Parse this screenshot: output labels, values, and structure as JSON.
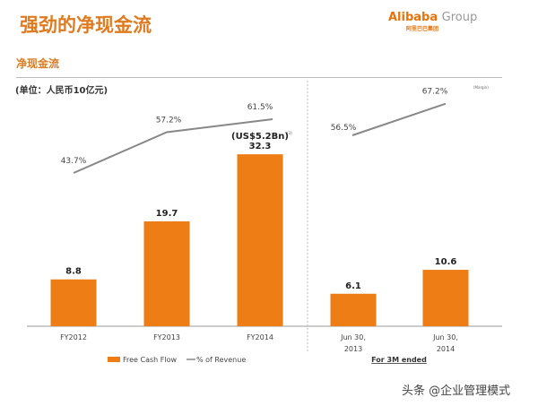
{
  "title": "强劲的净现金流",
  "logo": {
    "brand": "Alibaba",
    "group": "Group",
    "sub": "阿里巴巴集团"
  },
  "subtitle": "净现金流",
  "unit": "(单位：人民币10亿元)",
  "margin_note": "(Margin)",
  "credit": "头条 @企业管理模式",
  "chart_data": {
    "type": "bar",
    "categories": [
      "FY2012",
      "FY2013",
      "FY2014",
      "Jun 30, 2013",
      "Jun 30, 2014"
    ],
    "category_lines": [
      [
        "FY2012"
      ],
      [
        "FY2013"
      ],
      [
        "FY2014"
      ],
      [
        "Jun 30,",
        "2013"
      ],
      [
        "Jun 30,",
        "2014"
      ]
    ],
    "series": [
      {
        "name": "Free Cash Flow",
        "type": "bar",
        "values": [
          8.8,
          19.7,
          32.3,
          6.1,
          10.6
        ],
        "labels": [
          "8.8",
          "19.7",
          "32.3",
          "6.1",
          "10.6"
        ],
        "color": "#ef7d16"
      },
      {
        "name": "% of Revenue",
        "type": "line",
        "values": [
          43.7,
          57.2,
          61.5,
          56.5,
          67.2
        ],
        "labels": [
          "43.7%",
          "57.2%",
          "61.5%",
          "56.5%",
          "67.2%"
        ],
        "color": "#888888"
      }
    ],
    "annotation": "(US$5.2Bn)",
    "annotation_note": "(3)",
    "group_label": "For 3M ended",
    "legend": [
      "Free Cash Flow",
      "% of Revenue"
    ],
    "legend_position": "bottom"
  }
}
